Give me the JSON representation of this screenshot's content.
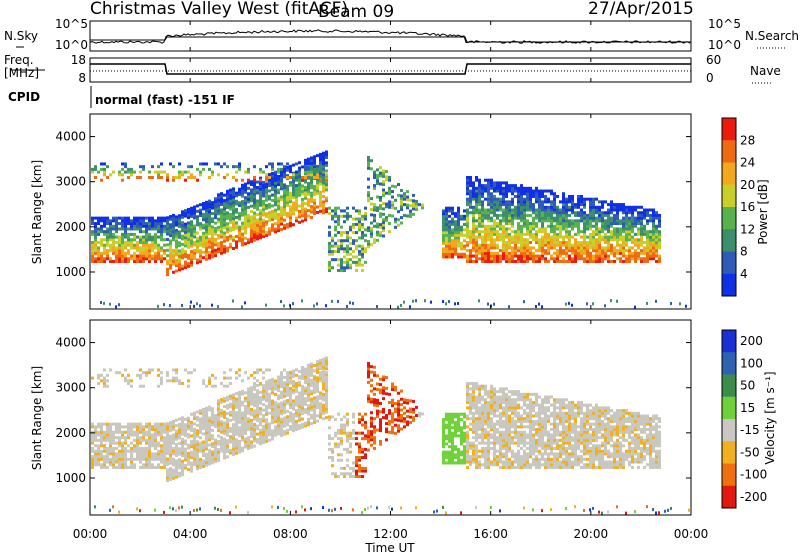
{
  "header": {
    "site": "Christmas Valley West (fitACF)",
    "beam": "Beam 09",
    "date": "27/Apr/2015"
  },
  "top_panels": {
    "nsky_label": "N.Sky",
    "nsky_ticks": [
      "10^5",
      "10^0"
    ],
    "nsearch_label": "N.Search",
    "nsearch_ticks": [
      "10^5",
      "10^0"
    ],
    "freq_label_1": "Freq.",
    "freq_label_2": "[MHz]",
    "freq_ticks": [
      "18",
      "8"
    ],
    "nave_label": "Nave",
    "nave_ticks": [
      "60",
      "0"
    ],
    "cpid_label": "CPID",
    "cpid_value": "normal (fast) -151 IF"
  },
  "chart_data": [
    {
      "type": "heatmap",
      "name": "power",
      "ylabel": "Slant Range [km]",
      "ylim": [
        180,
        4500
      ],
      "yticks": [
        "1000",
        "2000",
        "3000",
        "4000"
      ],
      "colorbar_label": "Power [dB]",
      "colorbar_ticks": [
        "4",
        "8",
        "12",
        "16",
        "20",
        "24",
        "28"
      ],
      "colors": [
        "#1030e6",
        "#2f5bb8",
        "#3b8f6a",
        "#58b34f",
        "#c9cf2a",
        "#f2a81c",
        "#f06a12",
        "#ea1c10"
      ]
    },
    {
      "type": "heatmap",
      "name": "velocity",
      "ylabel": "Slant Range [km]",
      "ylim": [
        180,
        4500
      ],
      "yticks": [
        "1000",
        "2000",
        "3000",
        "4000"
      ],
      "colorbar_label": "Velocity [m s⁻¹]",
      "colorbar_ticks": [
        "200",
        "100",
        "50",
        "15",
        "-15",
        "-50",
        "-100",
        "-200"
      ],
      "colors": [
        "#1b2fd6",
        "#2f62b0",
        "#3c8c4a",
        "#6fd23a",
        "#c8c8c0",
        "#f0b020",
        "#f07010",
        "#e01810"
      ]
    }
  ],
  "xaxis": {
    "label": "Time UT",
    "ticks": [
      "00:00",
      "04:00",
      "08:00",
      "12:00",
      "16:00",
      "20:00",
      "00:00"
    ]
  }
}
